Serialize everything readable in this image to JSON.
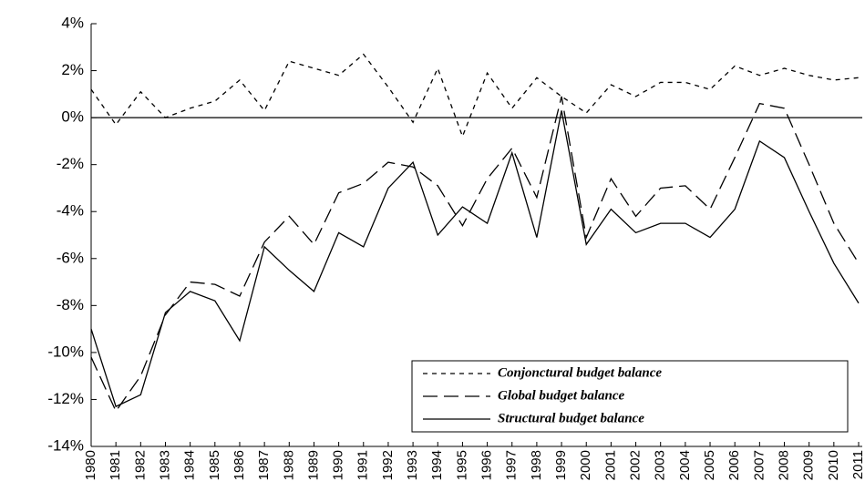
{
  "chart_data": {
    "type": "line",
    "categories": [
      "1980",
      "1981",
      "1982",
      "1983",
      "1984",
      "1985",
      "1986",
      "1987",
      "1988",
      "1989",
      "1990",
      "1991",
      "1992",
      "1993",
      "1994",
      "1995",
      "1996",
      "1997",
      "1998",
      "1999",
      "2000",
      "2001",
      "2002",
      "2003",
      "2004",
      "2005",
      "2006",
      "2007",
      "2008",
      "2009",
      "2010",
      "2011"
    ],
    "series": [
      {
        "name": "Conjonctural budget balance",
        "color": "#000000",
        "dash": "dotted",
        "values": [
          1.2,
          -0.3,
          1.1,
          0.0,
          0.4,
          0.7,
          1.6,
          0.3,
          2.4,
          2.1,
          1.8,
          2.7,
          1.3,
          -0.2,
          2.1,
          -0.8,
          1.9,
          0.4,
          1.7,
          0.9,
          0.2,
          1.4,
          0.9,
          1.5,
          1.5,
          1.2,
          2.2,
          1.8,
          2.1,
          1.8,
          1.6,
          1.7
        ]
      },
      {
        "name": "Global budget balance",
        "color": "#000000",
        "dash": "dashed",
        "values": [
          -10.2,
          -12.5,
          -11.0,
          -8.4,
          -7.0,
          -7.1,
          -7.6,
          -5.3,
          -4.2,
          -5.4,
          -3.2,
          -2.8,
          -1.9,
          -2.1,
          -2.9,
          -4.6,
          -2.6,
          -1.3,
          -3.4,
          0.9,
          -5.1,
          -2.6,
          -4.2,
          -3.0,
          -2.9,
          -3.9,
          -1.7,
          0.6,
          0.4,
          -2.0,
          -4.5,
          -6.2
        ]
      },
      {
        "name": "Structural budget balance",
        "color": "#000000",
        "dash": "solid",
        "values": [
          -9.0,
          -12.3,
          -11.8,
          -8.3,
          -7.4,
          -7.8,
          -9.5,
          -5.5,
          -6.5,
          -7.4,
          -4.9,
          -5.5,
          -3.0,
          -1.9,
          -5.0,
          -3.8,
          -4.5,
          -1.5,
          -5.1,
          0.3,
          -5.4,
          -3.9,
          -4.9,
          -4.5,
          -4.5,
          -5.1,
          -3.9,
          -1.0,
          -1.7,
          -4.0,
          -6.2,
          -7.9
        ]
      }
    ],
    "ylim": [
      -14,
      4
    ],
    "yticks": [
      {
        "value": 4,
        "label": "4%"
      },
      {
        "value": 2,
        "label": "2%"
      },
      {
        "value": 0,
        "label": "0%"
      },
      {
        "value": -2,
        "label": "-2%"
      },
      {
        "value": -4,
        "label": "-4%"
      },
      {
        "value": -6,
        "label": "-6%"
      },
      {
        "value": -8,
        "label": "-8%"
      },
      {
        "value": -10,
        "label": "-10%"
      },
      {
        "value": -12,
        "label": "-12%"
      },
      {
        "value": -14,
        "label": "-14%"
      }
    ],
    "zero_line": true,
    "legend": "lower right"
  }
}
